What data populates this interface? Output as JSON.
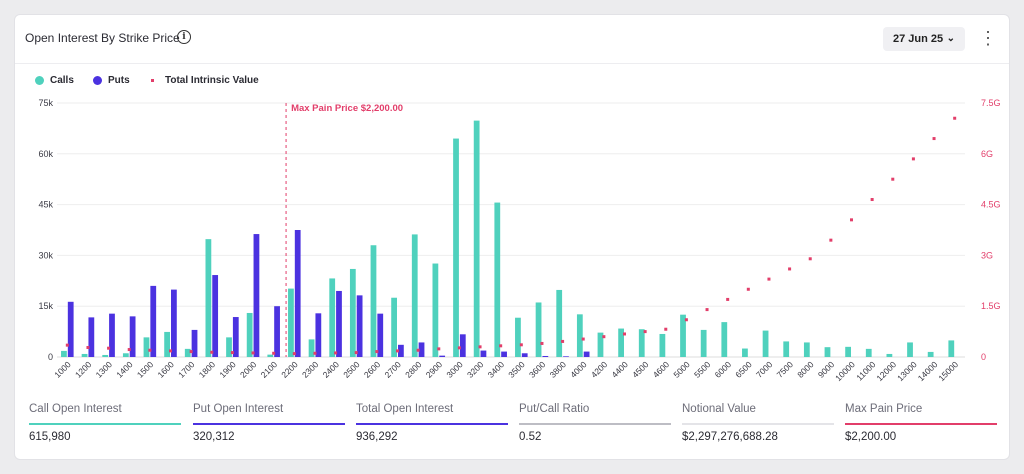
{
  "header": {
    "title": "Open Interest By Strike Price",
    "info_icon": "info-icon",
    "date": "27 Jun 25",
    "menu_icon": "more-vertical-icon"
  },
  "legend": [
    {
      "label": "Calls",
      "color": "#4fd1bd"
    },
    {
      "label": "Puts",
      "color": "#4b32e0"
    },
    {
      "label": "Total Intrinsic Value",
      "color": "#e23e6a"
    }
  ],
  "chart_data": {
    "type": "bar",
    "categories": [
      "1000",
      "1200",
      "1300",
      "1400",
      "1500",
      "1600",
      "1700",
      "1800",
      "1900",
      "2000",
      "2100",
      "2200",
      "2300",
      "2400",
      "2500",
      "2600",
      "2700",
      "2800",
      "2900",
      "3000",
      "3200",
      "3400",
      "3500",
      "3600",
      "3800",
      "4000",
      "4200",
      "4400",
      "4500",
      "4600",
      "5000",
      "5500",
      "6000",
      "6500",
      "7000",
      "7500",
      "8000",
      "9000",
      "10000",
      "11000",
      "12000",
      "13000",
      "14000",
      "15000"
    ],
    "series": [
      {
        "name": "Calls",
        "values": [
          1800,
          900,
          600,
          1100,
          5800,
          7400,
          2400,
          34800,
          5800,
          13000,
          700,
          20200,
          5200,
          23200,
          26000,
          33000,
          17500,
          36200,
          27600,
          64500,
          69800,
          45600,
          11600,
          16100,
          19800,
          12600,
          7200,
          8400,
          8200,
          6800,
          12500,
          8000,
          10300,
          2500,
          7800,
          4600,
          4300,
          2900,
          3000,
          2400,
          900,
          4300,
          1500,
          4900
        ]
      },
      {
        "name": "Puts",
        "values": [
          16300,
          11700,
          12800,
          12000,
          21000,
          19900,
          8000,
          24200,
          11800,
          36300,
          15000,
          37500,
          12900,
          19500,
          18200,
          12800,
          3600,
          4300,
          400,
          6700,
          1900,
          1600,
          1100,
          300,
          200,
          1600,
          0,
          0,
          0,
          0,
          0,
          0,
          0,
          0,
          0,
          0,
          0,
          0,
          0,
          0,
          0,
          0,
          0,
          0
        ]
      },
      {
        "name": "Total Intrinsic Value",
        "axis": "right",
        "values": [
          0.35,
          0.28,
          0.26,
          0.22,
          0.2,
          0.18,
          0.16,
          0.14,
          0.13,
          0.12,
          0.11,
          0.1,
          0.11,
          0.12,
          0.13,
          0.16,
          0.18,
          0.2,
          0.24,
          0.27,
          0.3,
          0.33,
          0.36,
          0.4,
          0.46,
          0.53,
          0.6,
          0.68,
          0.75,
          0.82,
          1.1,
          1.4,
          1.7,
          2.0,
          2.3,
          2.6,
          2.9,
          3.45,
          4.05,
          4.65,
          5.25,
          5.85,
          6.45,
          7.05
        ]
      }
    ],
    "yleft": {
      "lim": [
        0,
        75000
      ],
      "ticks": [
        0,
        15000,
        30000,
        45000,
        60000,
        75000
      ],
      "tick_labels": [
        "0",
        "15k",
        "30k",
        "45k",
        "60k",
        "75k"
      ]
    },
    "yright": {
      "lim": [
        0,
        7.5
      ],
      "ticks": [
        0,
        1.5,
        3,
        4.5,
        6,
        7.5
      ],
      "tick_labels": [
        "0",
        "1.5G",
        "3G",
        "4.5G",
        "6G",
        "7.5G"
      ]
    },
    "annotation": {
      "label": "Max Pain Price $2,200.00",
      "category": "2200"
    },
    "colors": {
      "calls": "#4fd1bd",
      "puts": "#4b32e0",
      "tiv": "#e23e6a",
      "axis_text": "#3a3a44",
      "right_axis_text": "#e23e6a",
      "grid": "#eeeeee"
    }
  },
  "stats": [
    {
      "label": "Call Open Interest",
      "value": "615,980",
      "color": "#4fd1bd"
    },
    {
      "label": "Put Open Interest",
      "value": "320,312",
      "color": "#4b32e0"
    },
    {
      "label": "Total Open Interest",
      "value": "936,292",
      "color": "#4b32e0"
    },
    {
      "label": "Put/Call Ratio",
      "value": "0.52",
      "color": "#bdbdc4"
    },
    {
      "label": "Notional Value",
      "value": "$2,297,276,688.28",
      "color": "#e4e4e8"
    },
    {
      "label": "Max Pain Price",
      "value": "$2,200.00",
      "color": "#e23e6a"
    }
  ]
}
